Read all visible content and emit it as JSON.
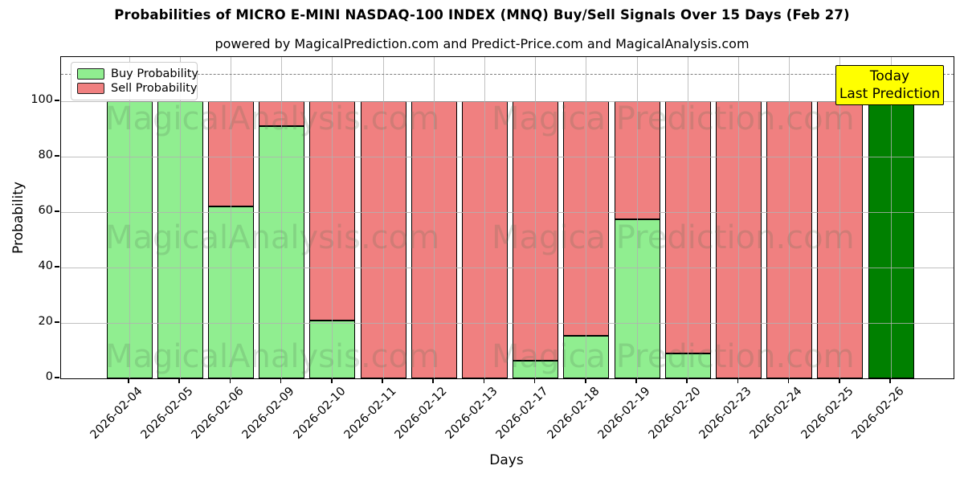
{
  "title": "Probabilities of MICRO E-MINI NASDAQ-100 INDEX (MNQ) Buy/Sell Signals Over 15 Days (Feb 27)",
  "subtitle": "powered by MagicalPrediction.com and Predict-Price.com and MagicalAnalysis.com",
  "annotation_box": {
    "line1": "Today",
    "line2": "Last Prediction",
    "bg_color": "#ffff00"
  },
  "legend": {
    "items": [
      {
        "label": "Buy Probability",
        "color": "#90ee90"
      },
      {
        "label": "Sell Probability",
        "color": "#f08080"
      }
    ]
  },
  "watermarks": {
    "left_text": "MagicalAnalysis.com",
    "right_text": "Magica Prediction.com"
  },
  "colors": {
    "buy": "#90ee90",
    "sell": "#f08080",
    "today_bar": "#008000",
    "grid": "#b0b0b0",
    "dashed_line": "#7f7f7f",
    "bar_edge": "#000000"
  },
  "chart_data": {
    "type": "bar",
    "stacked": true,
    "title": "Probabilities of MICRO E-MINI NASDAQ-100 INDEX (MNQ) Buy/Sell Signals Over 15 Days (Feb 27)",
    "xlabel": "Days",
    "ylabel": "Probability",
    "ylim": [
      0,
      116
    ],
    "yticks": [
      0,
      20,
      40,
      60,
      80,
      100
    ],
    "grid": true,
    "legend_position": "upper left",
    "dashed_line_y": 110,
    "categories": [
      "2026-02-04",
      "2026-02-05",
      "2026-02-06",
      "2026-02-09",
      "2026-02-10",
      "2026-02-11",
      "2026-02-12",
      "2026-02-13",
      "2026-02-17",
      "2026-02-18",
      "2026-02-19",
      "2026-02-20",
      "2026-02-23",
      "2026-02-24",
      "2026-02-25",
      "2026-02-26"
    ],
    "series": [
      {
        "name": "Buy Probability",
        "color": "#90ee90",
        "values": [
          100,
          100,
          62,
          91,
          21,
          0,
          0,
          0,
          6.5,
          15.5,
          57.5,
          9,
          0,
          0,
          0,
          0
        ]
      },
      {
        "name": "Sell Probability",
        "color": "#f08080",
        "values": [
          0,
          0,
          38,
          9,
          79,
          100,
          100,
          100,
          93.5,
          84.5,
          42.5,
          91,
          100,
          100,
          100,
          0
        ]
      },
      {
        "name": "Today Last Prediction",
        "color": "#008000",
        "values": [
          0,
          0,
          0,
          0,
          0,
          0,
          0,
          0,
          0,
          0,
          0,
          0,
          0,
          0,
          0,
          100
        ]
      }
    ]
  }
}
